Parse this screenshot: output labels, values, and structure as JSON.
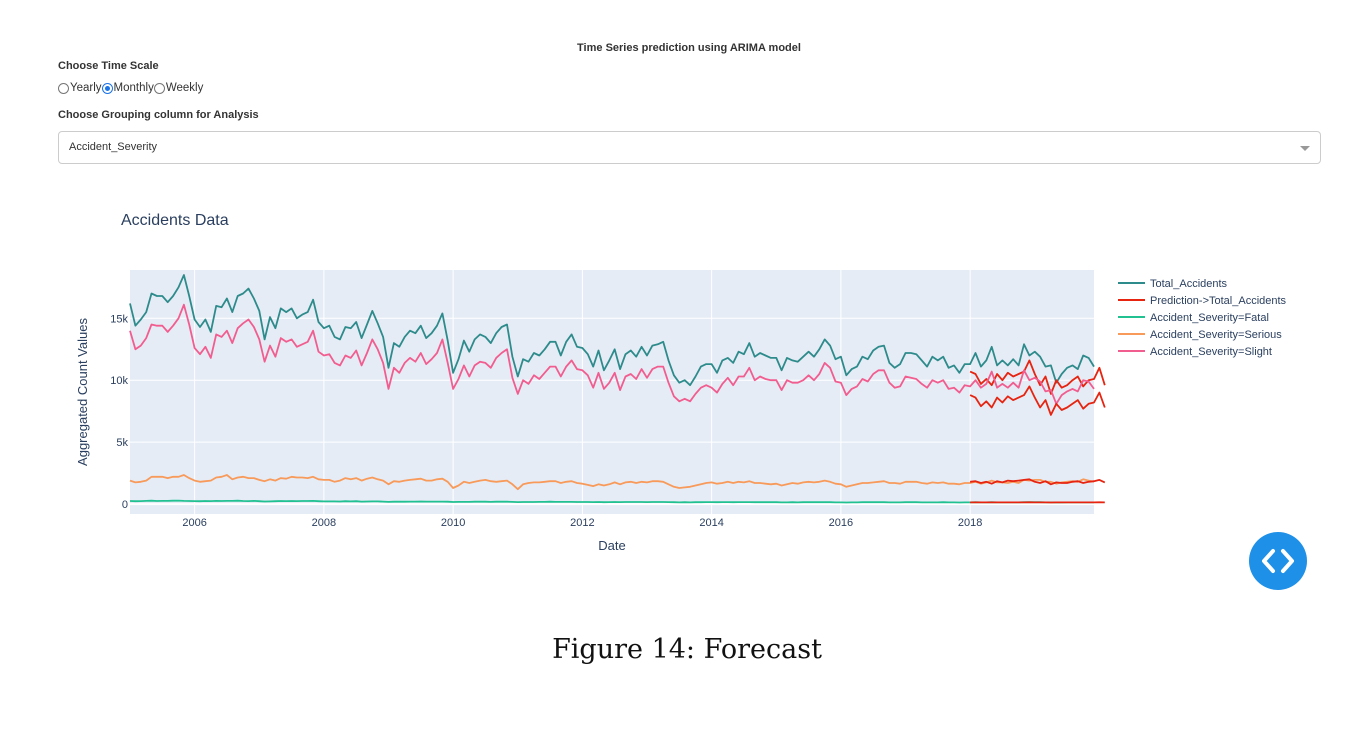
{
  "header": {
    "title": "Time Series prediction using ARIMA model"
  },
  "time_scale": {
    "label": "Choose Time Scale",
    "options": [
      {
        "label": "Yearly",
        "checked": false
      },
      {
        "label": "Monthly",
        "checked": true
      },
      {
        "label": "Weekly",
        "checked": false
      }
    ]
  },
  "grouping": {
    "label": "Choose Grouping column for Analysis",
    "selected": "Accident_Severity"
  },
  "code_button": {
    "icon": "code-brackets-icon",
    "color": "#1e90e8"
  },
  "caption": "Figure 14: Forecast",
  "chart_data": {
    "type": "line",
    "title": "Accidents Data",
    "xlabel": "Date",
    "ylabel": "Aggregated Count Values",
    "x_range": [
      "2005-01",
      "2019-12"
    ],
    "ylim": [
      -800,
      18900
    ],
    "x_ticks": [
      "2006",
      "2008",
      "2010",
      "2012",
      "2014",
      "2016",
      "2018"
    ],
    "y_ticks": [
      {
        "value": 0,
        "label": "0"
      },
      {
        "value": 5000,
        "label": "5k"
      },
      {
        "value": 10000,
        "label": "10k"
      },
      {
        "value": 15000,
        "label": "15k"
      }
    ],
    "grid": true,
    "legend_position": "right",
    "plot_bgcolor": "#e5ecf6",
    "series": [
      {
        "name": "Total_Accidents",
        "color": "#2e8b8b",
        "start": "2005-01",
        "values": [
          16200,
          14400,
          14900,
          15500,
          17000,
          16800,
          16800,
          16300,
          16800,
          17500,
          18500,
          16800,
          14900,
          14300,
          14900,
          13900,
          16000,
          15900,
          16600,
          15500,
          16800,
          17000,
          17400,
          16600,
          15600,
          13300,
          15100,
          14200,
          15800,
          15500,
          15800,
          15000,
          15300,
          15500,
          16500,
          14700,
          14200,
          14400,
          13500,
          13300,
          14300,
          14200,
          14700,
          13400,
          14500,
          15600,
          14600,
          13500,
          11000,
          13000,
          12700,
          13500,
          14000,
          13800,
          14400,
          13400,
          13800,
          14400,
          15400,
          13200,
          10600,
          11700,
          13200,
          12300,
          13300,
          13700,
          13500,
          13000,
          13800,
          14300,
          14500,
          11900,
          10300,
          11700,
          11500,
          12200,
          12000,
          12500,
          13100,
          13100,
          12000,
          13100,
          13700,
          12700,
          12600,
          12100,
          11100,
          12400,
          10800,
          11600,
          12500,
          10900,
          12100,
          12400,
          11900,
          12700,
          12000,
          12800,
          12900,
          13100,
          11600,
          10400,
          9800,
          10000,
          9600,
          10300,
          11100,
          11300,
          11300,
          10600,
          11600,
          11800,
          11400,
          12300,
          12100,
          13000,
          11900,
          12200,
          12000,
          11800,
          11800,
          10800,
          11800,
          11600,
          11500,
          11900,
          12300,
          11900,
          12500,
          13300,
          12800,
          11700,
          11900,
          10400,
          10900,
          11100,
          11900,
          11700,
          12400,
          12700,
          12800,
          11400,
          11000,
          11300,
          12200,
          12200,
          12100,
          11600,
          11100,
          11900,
          11600,
          11900,
          11000,
          11200,
          10600,
          11300,
          11300,
          12200,
          11100,
          11600,
          12700,
          11200,
          11600,
          11200,
          11700,
          11200,
          12900,
          12000,
          12300,
          11900,
          11100,
          11200,
          9800,
          10500,
          11000,
          11200,
          10900,
          12000,
          11800,
          11100
        ]
      },
      {
        "name": "Prediction->Total_Accidents",
        "color": "#e62410",
        "start": "2018-01",
        "values": [
          10700,
          10500,
          9700,
          10100,
          9600,
          10500,
          10000,
          10600,
          10300,
          10500,
          10700,
          11600,
          10500,
          9600,
          10300,
          8900,
          10000,
          9400,
          9600,
          10000,
          10300,
          9500,
          10000,
          10100,
          11000,
          9600
        ]
      },
      {
        "name": "Accident_Severity=Fatal",
        "color": "#22c191",
        "start": "2005-01",
        "values": [
          250,
          230,
          240,
          260,
          270,
          250,
          260,
          260,
          270,
          280,
          260,
          250,
          240,
          230,
          250,
          240,
          260,
          250,
          260,
          260,
          270,
          250,
          240,
          260,
          230,
          210,
          220,
          230,
          250,
          240,
          250,
          240,
          250,
          250,
          260,
          230,
          220,
          220,
          220,
          210,
          230,
          220,
          230,
          200,
          210,
          220,
          220,
          200,
          180,
          190,
          190,
          190,
          200,
          200,
          210,
          200,
          200,
          200,
          200,
          190,
          170,
          180,
          180,
          180,
          190,
          190,
          190,
          180,
          190,
          190,
          190,
          180,
          160,
          170,
          170,
          170,
          180,
          180,
          190,
          180,
          180,
          180,
          180,
          170,
          170,
          170,
          160,
          170,
          150,
          160,
          170,
          160,
          170,
          170,
          170,
          170,
          160,
          170,
          170,
          170,
          160,
          150,
          140,
          150,
          140,
          150,
          150,
          160,
          160,
          150,
          160,
          160,
          150,
          160,
          160,
          160,
          150,
          150,
          150,
          150,
          150,
          140,
          140,
          150,
          140,
          150,
          150,
          150,
          150,
          160,
          150,
          140,
          140,
          130,
          140,
          140,
          150,
          150,
          150,
          150,
          150,
          140,
          140,
          140,
          150,
          150,
          150,
          140,
          140,
          140,
          140,
          150,
          140,
          140,
          130,
          140,
          140,
          150,
          140,
          140,
          150,
          140,
          140,
          140,
          140,
          140,
          150,
          150,
          150,
          150,
          140,
          140,
          130,
          130,
          140,
          140,
          140,
          140,
          140,
          140
        ]
      },
      {
        "name": "Accident_Severity=Serious",
        "color": "#f89a5a",
        "start": "2005-01",
        "values": [
          1900,
          1750,
          1800,
          1900,
          2200,
          2200,
          2200,
          2100,
          2200,
          2200,
          2350,
          2100,
          1900,
          1800,
          1850,
          1900,
          2150,
          2200,
          2350,
          2000,
          2150,
          2200,
          2100,
          2100,
          1950,
          1850,
          2000,
          1900,
          2100,
          2050,
          2200,
          2150,
          2150,
          2100,
          2200,
          2000,
          1950,
          1950,
          1800,
          1900,
          2100,
          2000,
          2100,
          1900,
          2050,
          2150,
          2000,
          1900,
          1600,
          1850,
          1800,
          1900,
          1950,
          2000,
          2050,
          1900,
          1900,
          2000,
          2050,
          1800,
          1300,
          1500,
          1800,
          1700,
          1800,
          1900,
          1950,
          1850,
          1800,
          1850,
          1900,
          1600,
          1200,
          1600,
          1700,
          1750,
          1750,
          1800,
          1850,
          1850,
          1700,
          1800,
          1850,
          1700,
          1650,
          1550,
          1450,
          1600,
          1500,
          1600,
          1750,
          1600,
          1750,
          1800,
          1700,
          1800,
          1750,
          1850,
          1850,
          1800,
          1600,
          1400,
          1300,
          1350,
          1400,
          1500,
          1600,
          1700,
          1750,
          1650,
          1700,
          1800,
          1700,
          1800,
          1750,
          1850,
          1700,
          1700,
          1650,
          1600,
          1650,
          1500,
          1600,
          1700,
          1650,
          1750,
          1800,
          1750,
          1800,
          1900,
          1800,
          1650,
          1600,
          1400,
          1500,
          1600,
          1700,
          1700,
          1750,
          1800,
          1850,
          1700,
          1700,
          1650,
          1800,
          1800,
          1800,
          1700,
          1650,
          1750,
          1700,
          1750,
          1650,
          1650,
          1600,
          1700,
          1700,
          1800,
          1650,
          1750,
          1900,
          1750,
          1750,
          1700,
          1800,
          1700,
          1950,
          1900,
          1950,
          1950,
          1800,
          1800,
          1650,
          1750,
          1800,
          1850,
          1800,
          2000,
          1900,
          1800
        ]
      },
      {
        "name": "Accident_Severity=Slight",
        "color": "#f25d8f",
        "start": "2005-01",
        "values": [
          14000,
          12500,
          12800,
          13400,
          14500,
          14400,
          14400,
          13900,
          14400,
          15000,
          16100,
          14500,
          12600,
          12100,
          12700,
          11800,
          13700,
          13500,
          14000,
          13000,
          14200,
          14600,
          14900,
          14300,
          13300,
          11500,
          12800,
          11900,
          13400,
          13100,
          13300,
          12700,
          12900,
          13100,
          14000,
          12300,
          12000,
          12100,
          11400,
          11200,
          12000,
          11800,
          12400,
          11200,
          12200,
          13300,
          12500,
          11400,
          9300,
          11000,
          10600,
          11400,
          11800,
          11500,
          12200,
          11300,
          11700,
          12200,
          13300,
          11400,
          9300,
          10100,
          11200,
          10300,
          11200,
          11500,
          11400,
          11000,
          11800,
          12200,
          12500,
          10200,
          8900,
          10000,
          9700,
          10400,
          10100,
          10600,
          11100,
          11100,
          10300,
          11100,
          11600,
          10900,
          10800,
          10400,
          9400,
          10600,
          9300,
          9800,
          10600,
          9200,
          10300,
          10500,
          10100,
          10900,
          10200,
          10900,
          11100,
          11100,
          9800,
          8700,
          8300,
          8500,
          8300,
          8900,
          9400,
          9600,
          9400,
          9000,
          9700,
          10200,
          9600,
          10300,
          10300,
          11000,
          10000,
          10300,
          10100,
          10000,
          10000,
          9200,
          10000,
          9800,
          9800,
          10000,
          10400,
          10000,
          10500,
          11400,
          11000,
          9900,
          9800,
          8800,
          9300,
          9500,
          10100,
          9900,
          10500,
          10800,
          10800,
          9800,
          9400,
          9500,
          10300,
          10200,
          10100,
          9700,
          9400,
          10000,
          9800,
          10000,
          9300,
          9400,
          9000,
          9600,
          9500,
          10000,
          9400,
          9700,
          10700,
          9400,
          9700,
          9400,
          9800,
          9400,
          10800,
          10000,
          10200,
          9900,
          9100,
          9200,
          8100,
          8800,
          9100,
          9300,
          9100,
          10000,
          9900,
          9300
        ]
      },
      {
        "name": "Prediction->Accident_Severity=Slight",
        "color": "#e62410",
        "start": "2018-01",
        "show_in_legend": false,
        "values": [
          8800,
          8600,
          7900,
          8300,
          7800,
          8600,
          8200,
          8700,
          8400,
          8600,
          8800,
          9500,
          8600,
          7800,
          8400,
          7200,
          8100,
          7600,
          7800,
          8100,
          8400,
          7700,
          8100,
          8200,
          9000,
          7800
        ]
      },
      {
        "name": "Prediction->Accident_Severity=Serious",
        "color": "#e62410",
        "start": "2018-01",
        "show_in_legend": false,
        "values": [
          1800,
          1850,
          1700,
          1800,
          1650,
          1850,
          1750,
          1900,
          1850,
          1900,
          1950,
          2000,
          1800,
          1700,
          1850,
          1600,
          1750,
          1700,
          1700,
          1800,
          1850,
          1700,
          1800,
          1850,
          1950,
          1750
        ]
      },
      {
        "name": "Prediction->Accident_Severity=Fatal",
        "color": "#e62410",
        "start": "2018-01",
        "show_in_legend": false,
        "values": [
          140,
          140,
          135,
          140,
          135,
          140,
          140,
          140,
          135,
          140,
          140,
          145,
          140,
          135,
          140,
          130,
          135,
          135,
          135,
          140,
          140,
          135,
          140,
          140,
          145,
          140
        ]
      }
    ]
  }
}
